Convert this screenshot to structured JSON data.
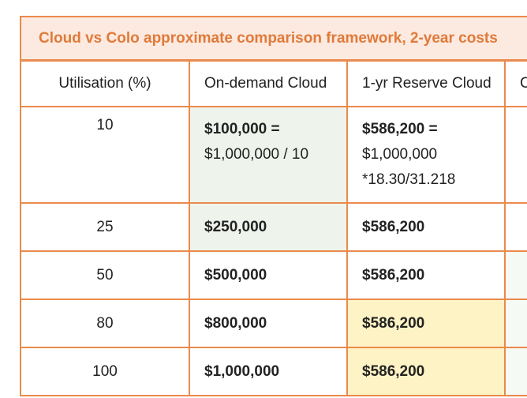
{
  "title": "Cloud vs Colo approximate comparison framework, 2-year costs",
  "headers": [
    "Utilisation (%)",
    "On-demand Cloud",
    "1-yr Reserve Cloud",
    "C"
  ],
  "rows": [
    {
      "util": "10",
      "ondemand": "$100,000 =",
      "ondemand_sub": "$1,000,000  / 10",
      "reserve": "$586,200 =",
      "reserve_sub1": "$1,000,000",
      "reserve_sub2": "*18.30/31.218"
    },
    {
      "util": "25",
      "ondemand": "$250,000",
      "reserve": "$586,200"
    },
    {
      "util": "50",
      "ondemand": "$500,000",
      "reserve": "$586,200"
    },
    {
      "util": "80",
      "ondemand": "$800,000",
      "reserve": "$586,200"
    },
    {
      "util": "100",
      "ondemand": "$1,000,000",
      "reserve": "$586,200"
    }
  ],
  "colors": {
    "border": "#ea8a4c",
    "title": "#e07a3a",
    "title_bg": "#fce9df",
    "green": "#eef4ec",
    "yellow": "#fdf3c4"
  }
}
